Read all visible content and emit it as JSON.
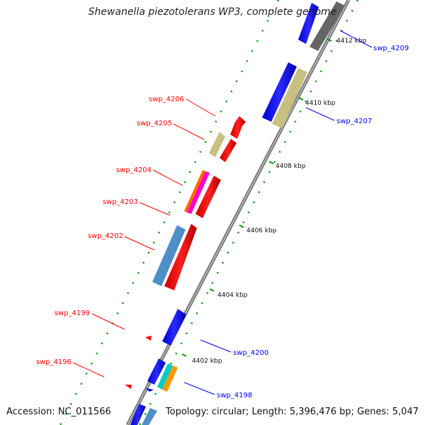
{
  "title": "Shewanella piezotolerans WP3, complete genome",
  "accession_text": "Accession: NC_011566",
  "summary_text": "Topology: circular; Length: 5,396,476 bp; Genes: 5,047",
  "colors": {
    "forward": "#ff0000",
    "reverse": "#0000ff",
    "backbone": "#888888",
    "tick": "#009900"
  },
  "kbp_labels": [
    "4412 kbp",
    "4410 kbp",
    "4408 kbp",
    "4406 kbp",
    "4404 kbp",
    "4402 kbp"
  ],
  "genes_forward": [
    "swp_4206",
    "swp_4205",
    "swp_4204",
    "swp_4203",
    "swp_4202",
    "swp_4199",
    "swp_4196"
  ],
  "genes_reverse": [
    "swp_4209",
    "swp_4207",
    "swp_4200",
    "swp_4198"
  ]
}
